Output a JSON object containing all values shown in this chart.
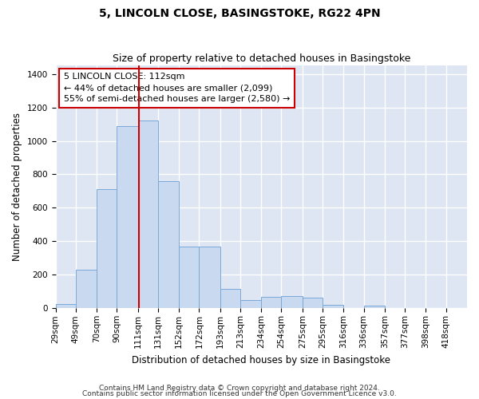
{
  "title": "5, LINCOLN CLOSE, BASINGSTOKE, RG22 4PN",
  "subtitle": "Size of property relative to detached houses in Basingstoke",
  "xlabel": "Distribution of detached houses by size in Basingstoke",
  "ylabel": "Number of detached properties",
  "footnote1": "Contains HM Land Registry data © Crown copyright and database right 2024.",
  "footnote2": "Contains public sector information licensed under the Open Government Licence v3.0.",
  "bar_color": "#c9d9f0",
  "bar_edge_color": "#7aa8d8",
  "background_color": "#dde6f2",
  "grid_color": "#ffffff",
  "annotation_box_color": "#cc0000",
  "vline_color": "#cc0000",
  "bins": [
    29,
    49,
    70,
    90,
    111,
    131,
    152,
    172,
    193,
    213,
    234,
    254,
    275,
    295,
    316,
    336,
    357,
    377,
    398,
    418,
    439
  ],
  "bar_heights": [
    25,
    230,
    710,
    1090,
    1120,
    760,
    370,
    370,
    115,
    50,
    70,
    75,
    65,
    20,
    0,
    15,
    0,
    0,
    0,
    0
  ],
  "vline_x": 112,
  "ylim": [
    0,
    1450
  ],
  "yticks": [
    0,
    200,
    400,
    600,
    800,
    1000,
    1200,
    1400
  ],
  "annotation_line1": "5 LINCOLN CLOSE: 112sqm",
  "annotation_line2": "← 44% of detached houses are smaller (2,099)",
  "annotation_line3": "55% of semi-detached houses are larger (2,580) →",
  "title_fontsize": 10,
  "subtitle_fontsize": 9,
  "label_fontsize": 8.5,
  "tick_fontsize": 7.5,
  "annotation_fontsize": 8,
  "footnote_fontsize": 6.5
}
